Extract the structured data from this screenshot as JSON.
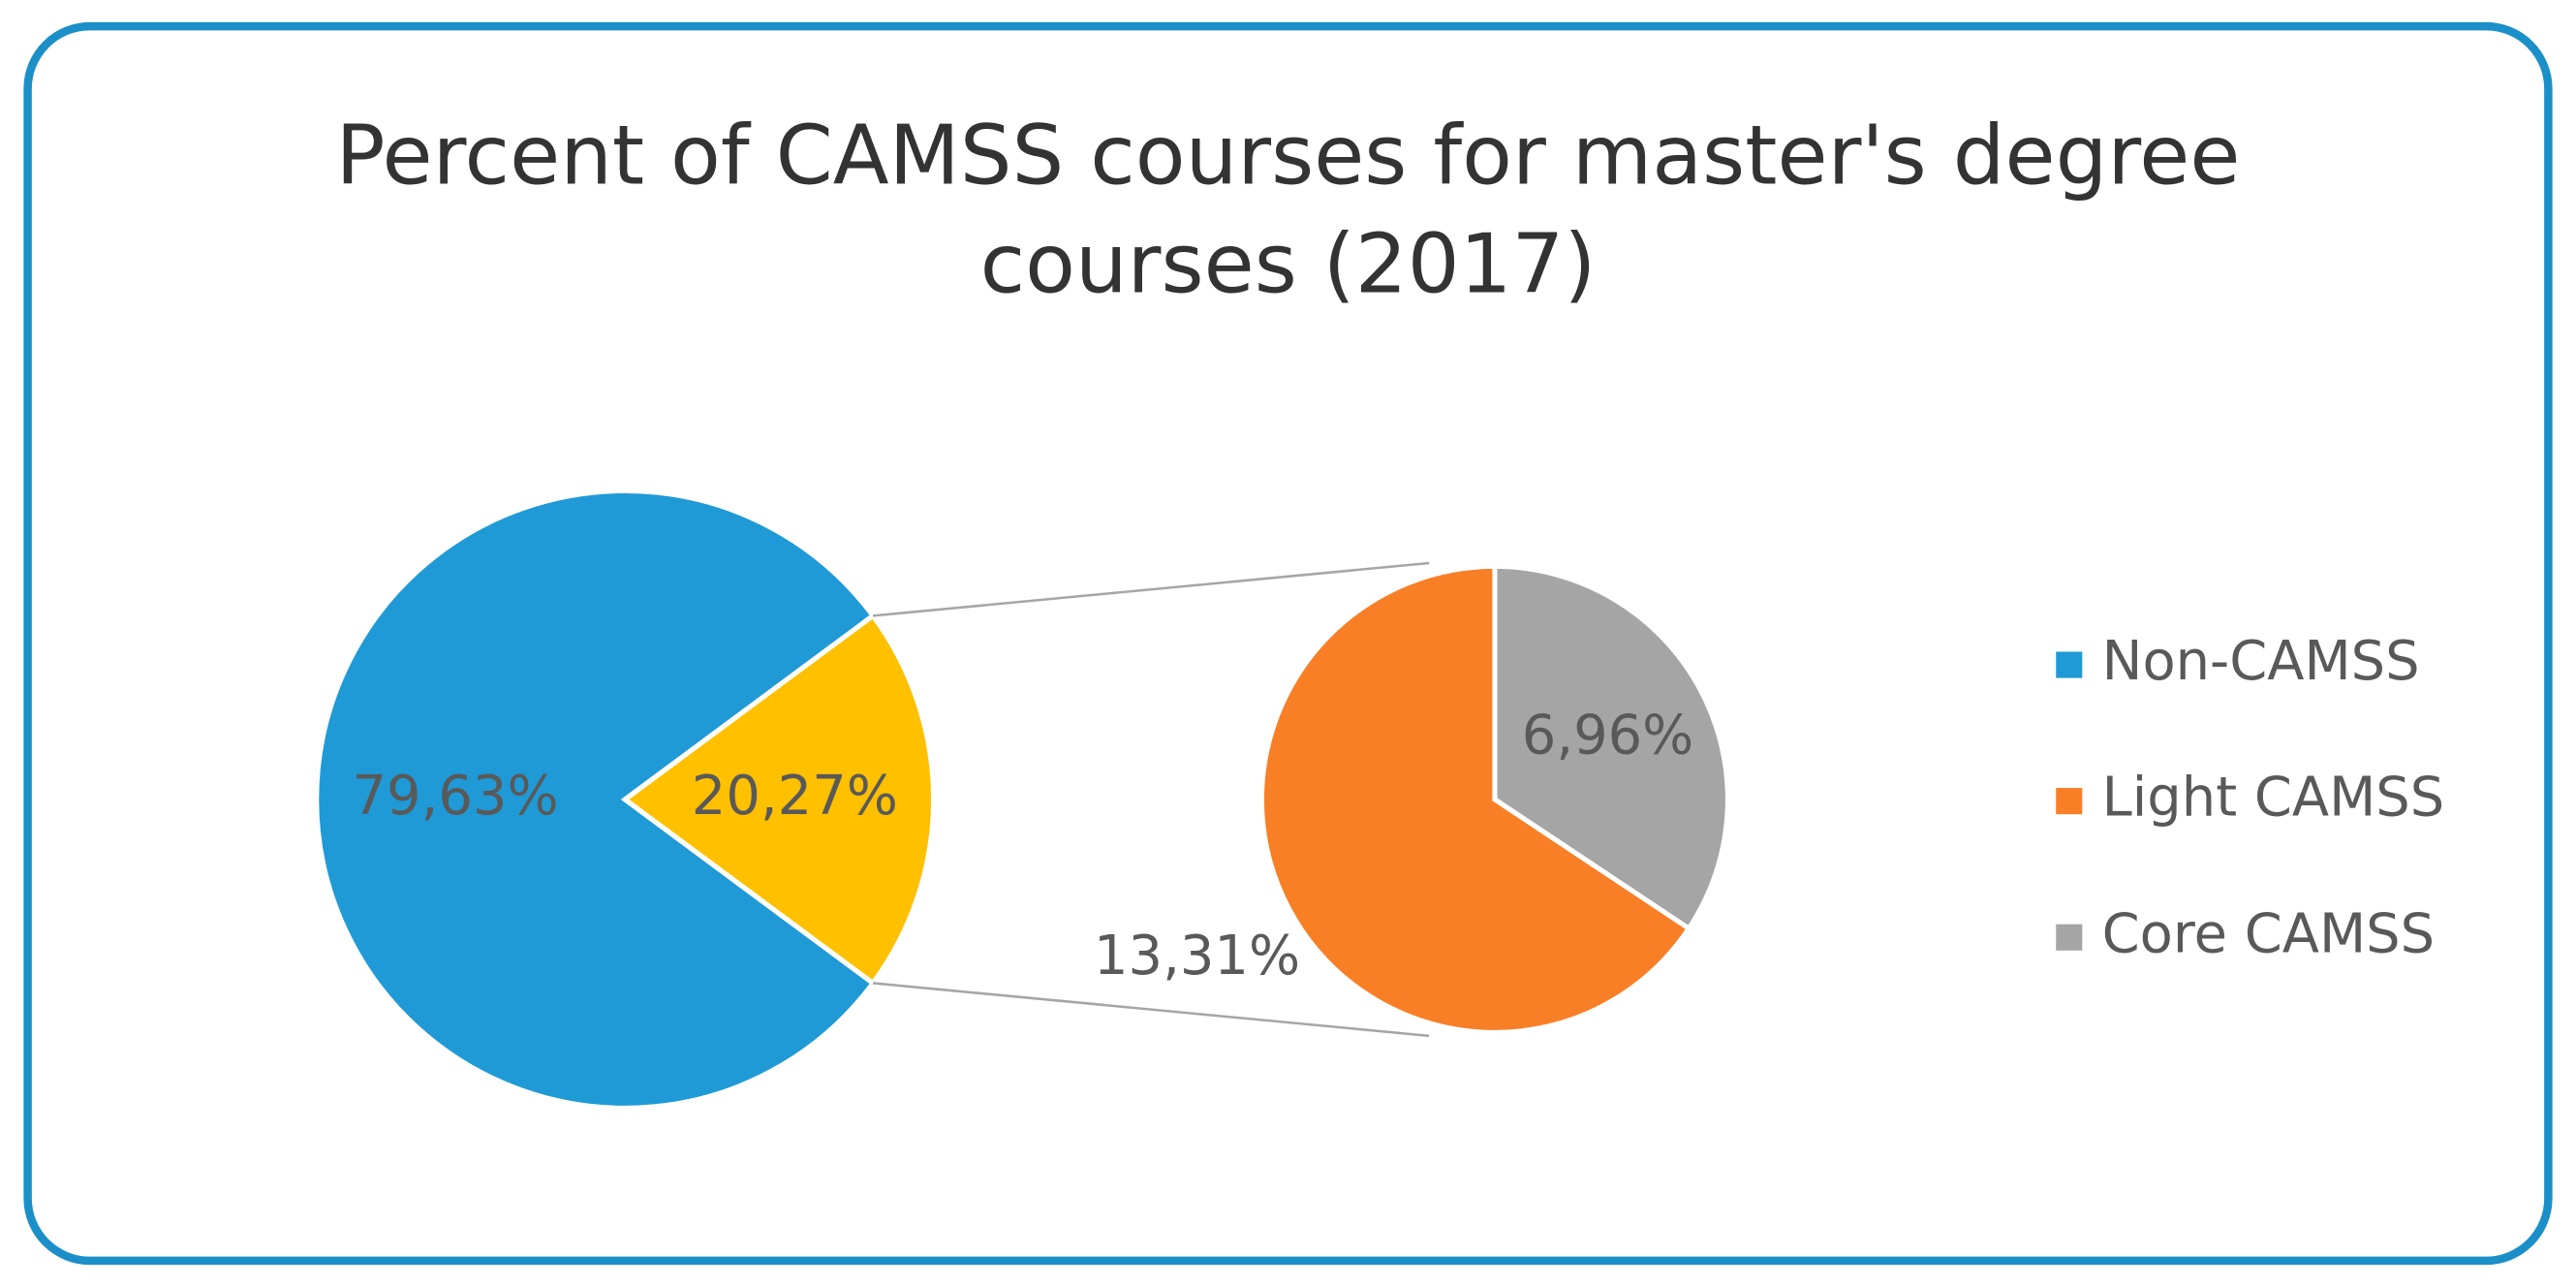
{
  "chart_data": {
    "type": "pie_of_pie",
    "title": "Percent of CAMSS courses for master's degree courses (2017)",
    "categories": [
      "Non-CAMSS",
      "Light CAMSS",
      "Core CAMSS"
    ],
    "values": [
      79.63,
      13.31,
      6.96
    ],
    "value_labels": [
      "79,63%",
      "13,31%",
      "6,96%"
    ],
    "colors": [
      "#1f9ad6",
      "#f97f27",
      "#a5a5a5"
    ],
    "other_value": 20.27,
    "other_value_label": "20,27%",
    "other_color": "#ffc000",
    "legend": "right"
  }
}
